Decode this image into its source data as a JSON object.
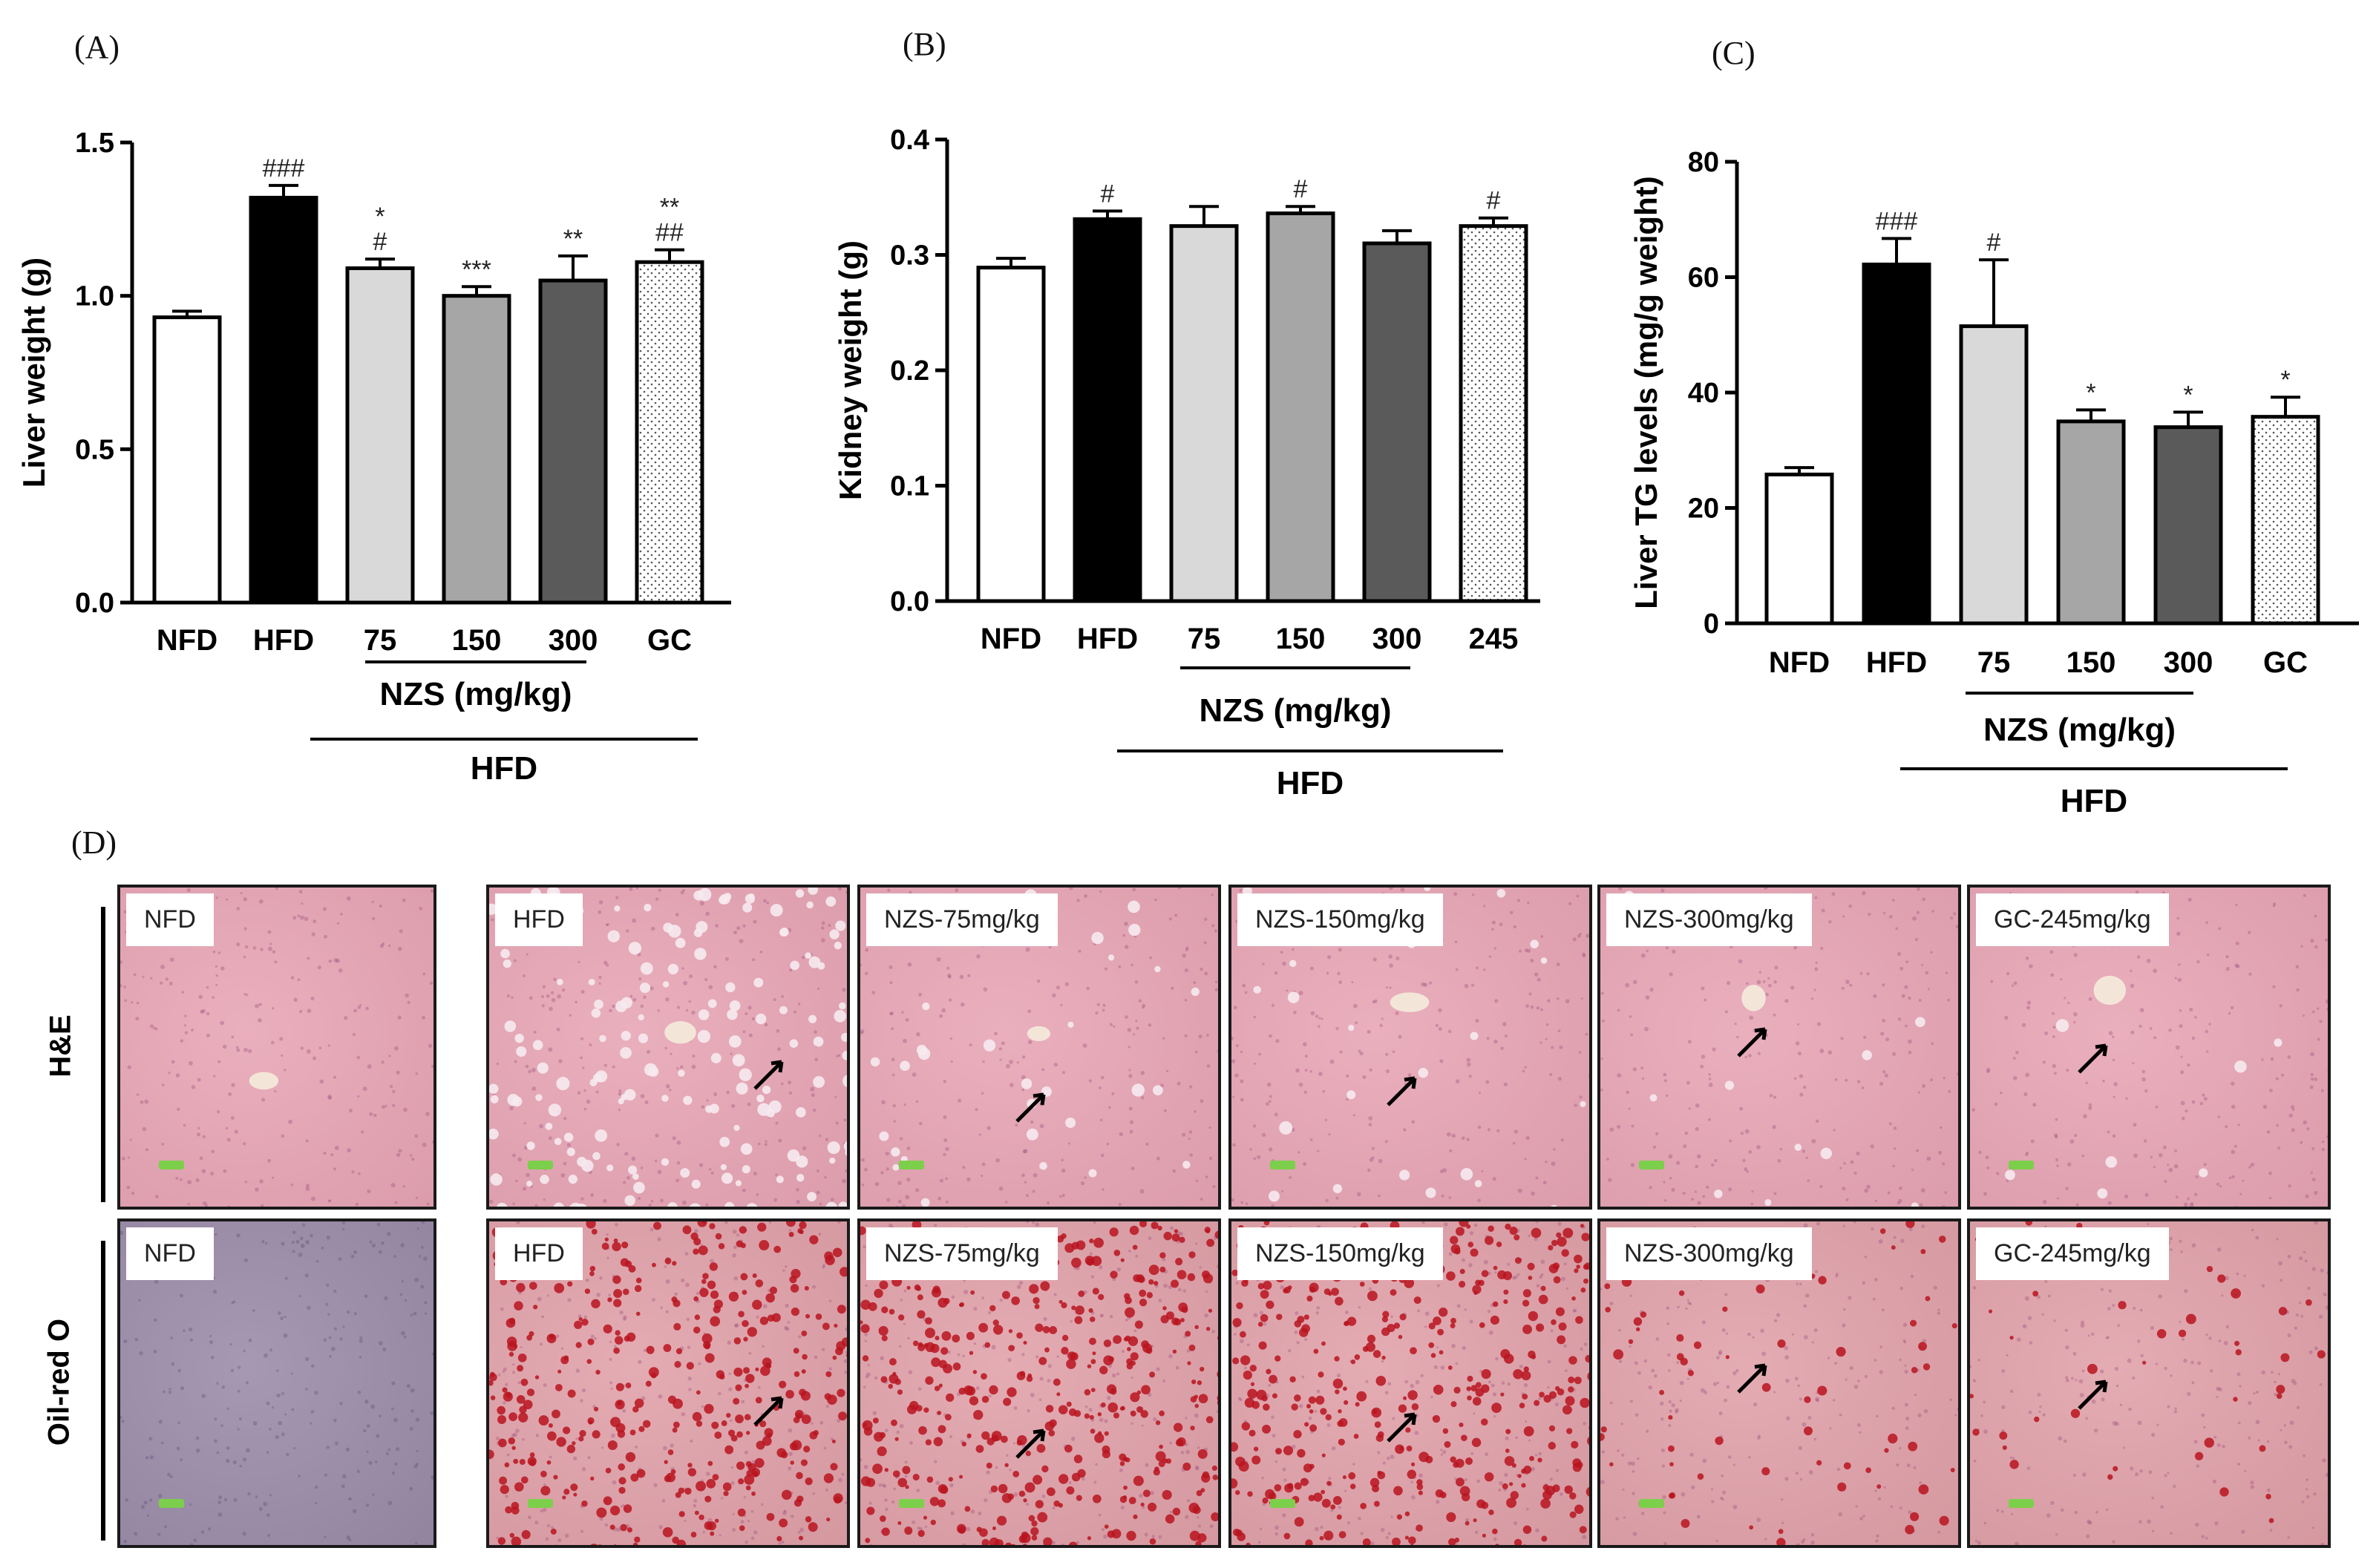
{
  "panels": {
    "A": {
      "letter": "(A)"
    },
    "B": {
      "letter": "(B)"
    },
    "C": {
      "letter": "(C)"
    },
    "D": {
      "letter": "(D)"
    }
  },
  "chart_data": [
    {
      "id": "A",
      "type": "bar",
      "ylabel": "Liver weight (g)",
      "ylim": [
        0,
        1.5
      ],
      "yticks": [
        "0.0",
        "0.5",
        "1.0",
        "1.5"
      ],
      "categories": [
        "NFD",
        "HFD",
        "75",
        "150",
        "300",
        "GC"
      ],
      "values": [
        0.93,
        1.32,
        1.09,
        1.0,
        1.05,
        1.11
      ],
      "errors": [
        0.02,
        0.04,
        0.03,
        0.03,
        0.08,
        0.04
      ],
      "significance": [
        [],
        [
          "###"
        ],
        [
          "*",
          "#"
        ],
        [
          "***"
        ],
        [
          "**"
        ],
        [
          "**",
          "##"
        ]
      ],
      "dose_group_label": "NZS (mg/kg)",
      "diet_group_label": "HFD",
      "fills": [
        "#ffffff",
        "#000000",
        "#d9d9d9",
        "#a6a6a6",
        "#5a5a5a",
        "dotted"
      ]
    },
    {
      "id": "B",
      "type": "bar",
      "ylabel": "Kidney weight (g)",
      "ylim": [
        0,
        0.4
      ],
      "yticks": [
        "0.0",
        "0.1",
        "0.2",
        "0.3",
        "0.4"
      ],
      "categories": [
        "NFD",
        "HFD",
        "75",
        "150",
        "300",
        "245"
      ],
      "values": [
        0.289,
        0.331,
        0.325,
        0.336,
        0.31,
        0.325
      ],
      "errors": [
        0.008,
        0.007,
        0.017,
        0.006,
        0.011,
        0.007
      ],
      "significance": [
        [],
        [
          "#"
        ],
        [],
        [
          "#"
        ],
        [],
        [
          "#"
        ]
      ],
      "dose_group_label": "NZS (mg/kg)",
      "diet_group_label": "HFD",
      "fills": [
        "#ffffff",
        "#000000",
        "#d9d9d9",
        "#a6a6a6",
        "#5a5a5a",
        "dotted"
      ]
    },
    {
      "id": "C",
      "type": "bar",
      "ylabel": "Liver TG levels (mg/g weight)",
      "ylim": [
        0,
        80
      ],
      "yticks": [
        "0",
        "20",
        "40",
        "60",
        "80"
      ],
      "categories": [
        "NFD",
        "HFD",
        "75",
        "150",
        "300",
        "GC"
      ],
      "values": [
        25.8,
        62.2,
        51.5,
        35.0,
        34.0,
        35.8
      ],
      "errors": [
        1.2,
        4.5,
        11.5,
        2.0,
        2.6,
        3.4
      ],
      "significance": [
        [],
        [
          "###"
        ],
        [
          "#"
        ],
        [
          "*"
        ],
        [
          "*"
        ],
        [
          "*"
        ]
      ],
      "dose_group_label": "NZS (mg/kg)",
      "diet_group_label": "HFD",
      "fills": [
        "#ffffff",
        "#000000",
        "#d9d9d9",
        "#a6a6a6",
        "#5a5a5a",
        "dotted"
      ]
    }
  ],
  "histology": {
    "rows": [
      {
        "stain": "H&E",
        "tiles": [
          "NFD",
          "HFD",
          "NZS-75mg/kg",
          "NZS-150mg/kg",
          "NZS-300mg/kg",
          "GC-245mg/kg"
        ]
      },
      {
        "stain": "Oil-red O",
        "tiles": [
          "NFD",
          "HFD",
          "NZS-75mg/kg",
          "NZS-150mg/kg",
          "NZS-300mg/kg",
          "GC-245mg/kg"
        ]
      }
    ],
    "colors": {
      "he": "#e7a4b4",
      "oro_nfd": "#9a8aa8",
      "oro": "#e0a0a8",
      "droplet": "#b8141e"
    },
    "red_density": [
      0,
      0.55,
      0.6,
      0.6,
      0.1,
      0.06
    ]
  }
}
